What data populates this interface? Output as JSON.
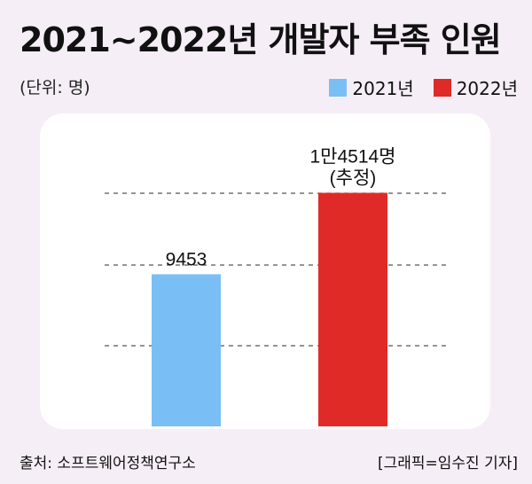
{
  "title": "2021~2022년 개발자 부족 인원",
  "unit": "(단위: 명)",
  "legend": [
    {
      "label": "2021년",
      "color": "#79bff5"
    },
    {
      "label": "2022년",
      "color": "#e02a27"
    }
  ],
  "source": "출처: 소프트웨어정책연구소",
  "credit": "[그래픽=임수진 기자]",
  "chart_data": {
    "type": "bar",
    "categories": [
      "2021년",
      "2022년"
    ],
    "values": [
      9453,
      14514
    ],
    "data_labels": [
      "9453",
      "1만4514명\n(추정)"
    ],
    "colors": [
      "#79bff5",
      "#e02a27"
    ],
    "ylim": [
      0,
      15700
    ],
    "grid": "dashed",
    "legend_position": "top-right",
    "title": "2021~2022년 개발자 부족 인원",
    "xlabel": "",
    "ylabel": ""
  }
}
